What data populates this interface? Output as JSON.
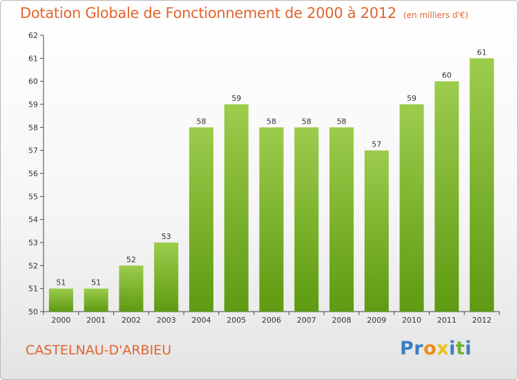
{
  "chart_data": {
    "type": "bar",
    "title": "Dotation Globale de Fonctionnement de 2000 à 2012",
    "subtitle": "(en milliers d'€)",
    "categories": [
      "2000",
      "2001",
      "2002",
      "2003",
      "2004",
      "2005",
      "2006",
      "2007",
      "2008",
      "2009",
      "2010",
      "2011",
      "2012"
    ],
    "values": [
      51,
      51,
      52,
      53,
      58,
      59,
      58,
      58,
      58,
      57,
      59,
      60,
      61
    ],
    "ylim": [
      50,
      62
    ],
    "yticks": [
      50,
      51,
      52,
      53,
      54,
      55,
      56,
      57,
      58,
      59,
      60,
      61,
      62
    ],
    "xlabel": "",
    "ylabel": "",
    "grid": false,
    "bar_color_top": "#9ccc4c",
    "bar_color_bottom": "#5e9a12"
  },
  "footer": {
    "city": "CASTELNAU-D'ARBIEU",
    "logo_letters": [
      {
        "char": "P",
        "color": "#3a7fc4"
      },
      {
        "char": "r",
        "color": "#3a7fc4"
      },
      {
        "char": "o",
        "color": "#f08a1c"
      },
      {
        "char": "x",
        "color": "#e8c21a"
      },
      {
        "char": "i",
        "color": "#3a7fc4"
      },
      {
        "char": "t",
        "color": "#6fb42c"
      },
      {
        "char": "i",
        "color": "#3a7fc4"
      }
    ]
  },
  "colors": {
    "title": "#e0642e",
    "axis": "#444444"
  }
}
